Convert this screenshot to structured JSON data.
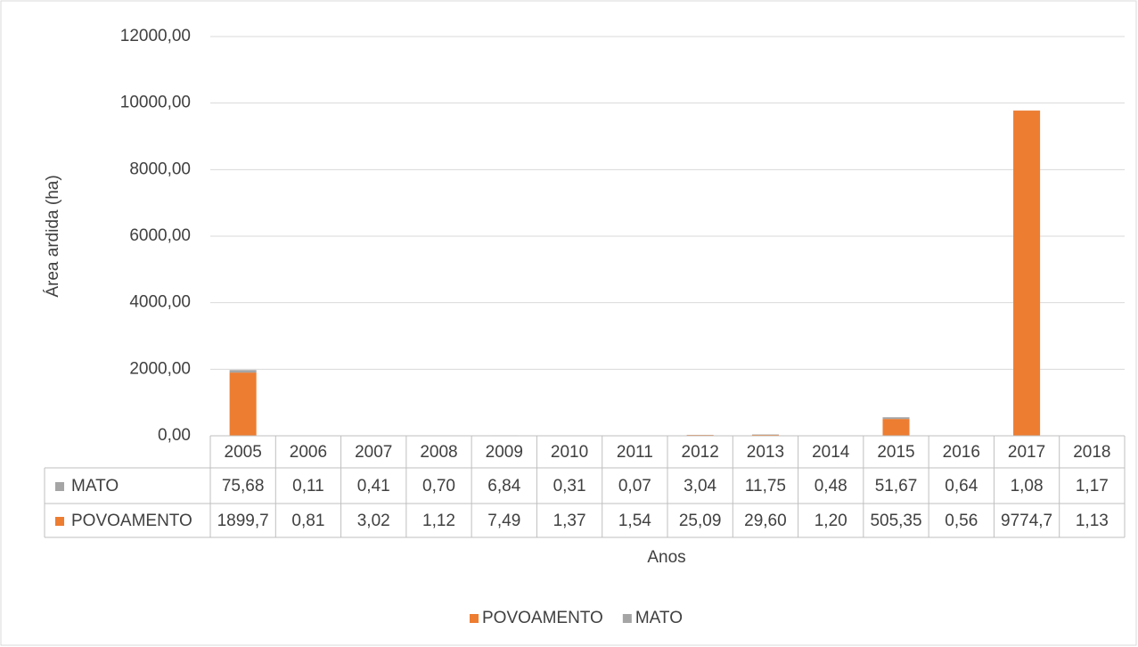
{
  "chart_data": {
    "type": "stacked-bar",
    "y_label": "Área ardida (ha)",
    "x_label": "Anos",
    "categories": [
      "2005",
      "2006",
      "2007",
      "2008",
      "2009",
      "2010",
      "2011",
      "2012",
      "2013",
      "2014",
      "2015",
      "2016",
      "2017",
      "2018"
    ],
    "series": [
      {
        "name": "POVOAMENTO",
        "color": "#ed7d31",
        "values": [
          1899.7,
          0.81,
          3.02,
          1.12,
          7.49,
          1.37,
          1.54,
          25.09,
          29.6,
          1.2,
          505.35,
          0.56,
          9774.7,
          1.13
        ],
        "value_labels": [
          "1899,7",
          "0,81",
          "3,02",
          "1,12",
          "7,49",
          "1,37",
          "1,54",
          "25,09",
          "29,60",
          "1,20",
          "505,35",
          "0,56",
          "9774,7",
          "1,13"
        ]
      },
      {
        "name": "MATO",
        "color": "#a5a5a5",
        "values": [
          75.68,
          0.11,
          0.41,
          0.7,
          6.84,
          0.31,
          0.07,
          3.04,
          11.75,
          0.48,
          51.67,
          0.64,
          1.08,
          1.17
        ],
        "value_labels": [
          "75,68",
          "0,11",
          "0,41",
          "0,70",
          "6,84",
          "0,31",
          "0,07",
          "3,04",
          "11,75",
          "0,48",
          "51,67",
          "0,64",
          "1,08",
          "1,17"
        ]
      }
    ],
    "ylim": [
      0,
      12000
    ],
    "yticks": [
      {
        "value": 0,
        "label": "0,00"
      },
      {
        "value": 2000,
        "label": "2000,00"
      },
      {
        "value": 4000,
        "label": "4000,00"
      },
      {
        "value": 6000,
        "label": "6000,00"
      },
      {
        "value": 8000,
        "label": "8000,00"
      },
      {
        "value": 10000,
        "label": "10000,00"
      },
      {
        "value": 12000,
        "label": "12000,00"
      }
    ],
    "grid": true,
    "legend": "bottom",
    "data_table": true
  }
}
